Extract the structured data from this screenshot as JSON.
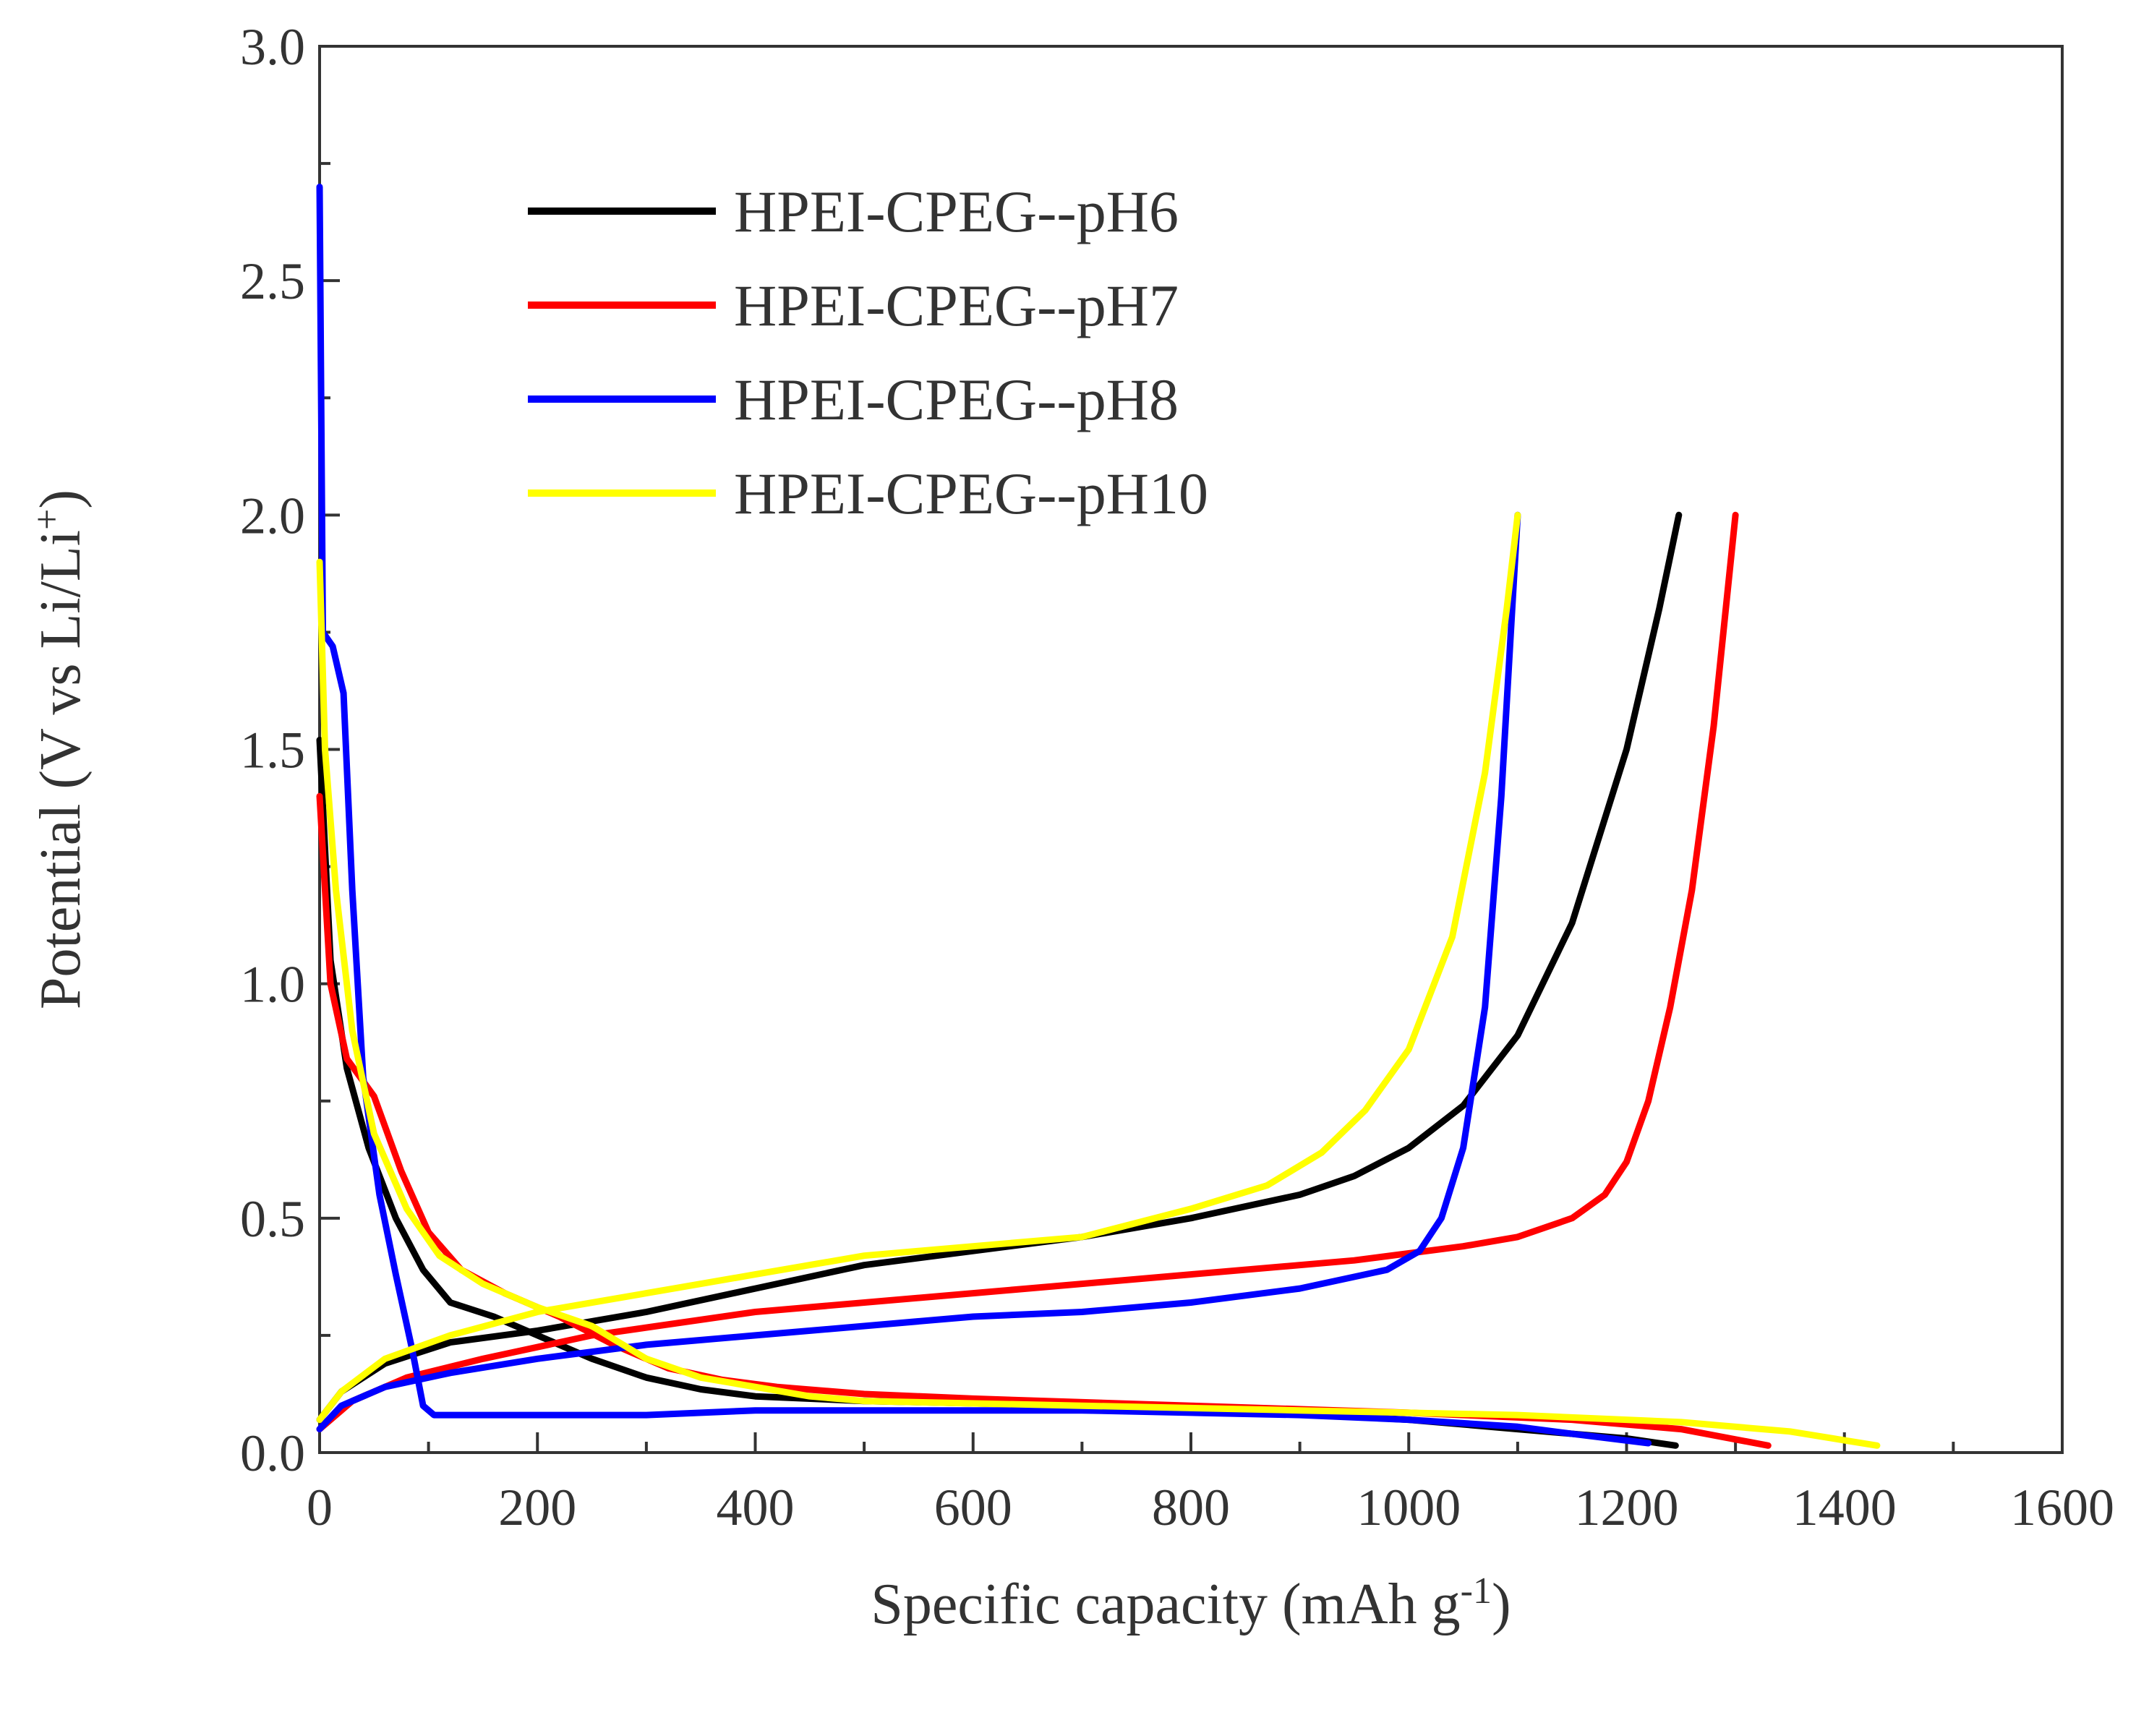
{
  "chart_data": {
    "type": "line",
    "title": "",
    "xlabel": "Specific capacity (mAh g",
    "xlabel_sup": "-1",
    "xlabel_end": ")",
    "ylabel": "Potential (V vs Li/Li",
    "ylabel_sup": "+",
    "ylabel_end": ")",
    "xlim": [
      0,
      1600
    ],
    "ylim": [
      0,
      3.0
    ],
    "xticks": [
      "0",
      "200",
      "400",
      "600",
      "800",
      "1000",
      "1200",
      "1400",
      "1600"
    ],
    "yticks": [
      "0.0",
      "0.5",
      "1.0",
      "1.5",
      "2.0",
      "2.5",
      "3.0"
    ],
    "legend_position": "top-left",
    "series": [
      {
        "name": "HPEI-CPEG--pH6",
        "color": "#000000",
        "discharge": [
          [
            0,
            1.52
          ],
          [
            10,
            1.05
          ],
          [
            25,
            0.82
          ],
          [
            45,
            0.65
          ],
          [
            70,
            0.5
          ],
          [
            95,
            0.39
          ],
          [
            120,
            0.32
          ],
          [
            160,
            0.29
          ],
          [
            200,
            0.25
          ],
          [
            250,
            0.2
          ],
          [
            300,
            0.16
          ],
          [
            350,
            0.135
          ],
          [
            400,
            0.12
          ],
          [
            500,
            0.11
          ],
          [
            600,
            0.105
          ],
          [
            800,
            0.095
          ],
          [
            1000,
            0.07
          ],
          [
            1100,
            0.05
          ],
          [
            1200,
            0.03
          ],
          [
            1245,
            0.015
          ]
        ],
        "charge": [
          [
            0,
            0.07
          ],
          [
            20,
            0.13
          ],
          [
            60,
            0.19
          ],
          [
            120,
            0.235
          ],
          [
            200,
            0.26
          ],
          [
            300,
            0.3
          ],
          [
            400,
            0.35
          ],
          [
            500,
            0.4
          ],
          [
            600,
            0.43
          ],
          [
            700,
            0.46
          ],
          [
            800,
            0.5
          ],
          [
            900,
            0.55
          ],
          [
            950,
            0.59
          ],
          [
            1000,
            0.65
          ],
          [
            1050,
            0.74
          ],
          [
            1100,
            0.89
          ],
          [
            1150,
            1.13
          ],
          [
            1200,
            1.5
          ],
          [
            1230,
            1.8
          ],
          [
            1248,
            2.0
          ]
        ]
      },
      {
        "name": "HPEI-CPEG--pH7",
        "color": "#ff0000",
        "discharge": [
          [
            0,
            1.4
          ],
          [
            10,
            1.0
          ],
          [
            25,
            0.84
          ],
          [
            50,
            0.76
          ],
          [
            75,
            0.6
          ],
          [
            100,
            0.47
          ],
          [
            130,
            0.39
          ],
          [
            170,
            0.34
          ],
          [
            220,
            0.29
          ],
          [
            270,
            0.23
          ],
          [
            320,
            0.18
          ],
          [
            370,
            0.155
          ],
          [
            420,
            0.14
          ],
          [
            500,
            0.125
          ],
          [
            600,
            0.115
          ],
          [
            800,
            0.1
          ],
          [
            1000,
            0.085
          ],
          [
            1150,
            0.07
          ],
          [
            1250,
            0.05
          ],
          [
            1330,
            0.015
          ]
        ],
        "charge": [
          [
            0,
            0.05
          ],
          [
            30,
            0.11
          ],
          [
            80,
            0.16
          ],
          [
            150,
            0.2
          ],
          [
            250,
            0.25
          ],
          [
            400,
            0.3
          ],
          [
            600,
            0.34
          ],
          [
            800,
            0.38
          ],
          [
            950,
            0.41
          ],
          [
            1050,
            0.44
          ],
          [
            1100,
            0.46
          ],
          [
            1150,
            0.5
          ],
          [
            1180,
            0.55
          ],
          [
            1200,
            0.62
          ],
          [
            1220,
            0.75
          ],
          [
            1240,
            0.95
          ],
          [
            1260,
            1.2
          ],
          [
            1280,
            1.55
          ],
          [
            1300,
            2.0
          ]
        ]
      },
      {
        "name": "HPEI-CPEG--pH8",
        "color": "#0000ff",
        "discharge": [
          [
            0,
            2.7
          ],
          [
            3,
            1.75
          ],
          [
            12,
            1.72
          ],
          [
            22,
            1.62
          ],
          [
            30,
            1.2
          ],
          [
            40,
            0.8
          ],
          [
            55,
            0.55
          ],
          [
            70,
            0.38
          ],
          [
            85,
            0.22
          ],
          [
            95,
            0.1
          ],
          [
            105,
            0.08
          ],
          [
            200,
            0.08
          ],
          [
            300,
            0.08
          ],
          [
            400,
            0.09
          ],
          [
            500,
            0.09
          ],
          [
            600,
            0.09
          ],
          [
            700,
            0.09
          ],
          [
            800,
            0.085
          ],
          [
            900,
            0.08
          ],
          [
            1000,
            0.07
          ],
          [
            1100,
            0.055
          ],
          [
            1150,
            0.04
          ],
          [
            1220,
            0.02
          ]
        ],
        "charge": [
          [
            0,
            0.05
          ],
          [
            20,
            0.1
          ],
          [
            60,
            0.14
          ],
          [
            120,
            0.17
          ],
          [
            200,
            0.2
          ],
          [
            300,
            0.23
          ],
          [
            400,
            0.25
          ],
          [
            500,
            0.27
          ],
          [
            600,
            0.29
          ],
          [
            700,
            0.3
          ],
          [
            800,
            0.32
          ],
          [
            900,
            0.35
          ],
          [
            980,
            0.39
          ],
          [
            1010,
            0.43
          ],
          [
            1030,
            0.5
          ],
          [
            1050,
            0.65
          ],
          [
            1070,
            0.95
          ],
          [
            1085,
            1.4
          ],
          [
            1095,
            1.8
          ],
          [
            1100,
            2.0
          ]
        ]
      },
      {
        "name": "HPEI-CPEG--pH10",
        "color": "#ffff00",
        "discharge": [
          [
            0,
            1.9
          ],
          [
            5,
            1.5
          ],
          [
            15,
            1.2
          ],
          [
            30,
            0.9
          ],
          [
            50,
            0.68
          ],
          [
            80,
            0.52
          ],
          [
            110,
            0.42
          ],
          [
            150,
            0.36
          ],
          [
            200,
            0.31
          ],
          [
            250,
            0.27
          ],
          [
            300,
            0.2
          ],
          [
            350,
            0.16
          ],
          [
            400,
            0.14
          ],
          [
            450,
            0.12
          ],
          [
            500,
            0.11
          ],
          [
            700,
            0.1
          ],
          [
            900,
            0.09
          ],
          [
            1100,
            0.08
          ],
          [
            1250,
            0.065
          ],
          [
            1350,
            0.045
          ],
          [
            1430,
            0.015
          ]
        ],
        "charge": [
          [
            0,
            0.07
          ],
          [
            20,
            0.13
          ],
          [
            60,
            0.2
          ],
          [
            120,
            0.25
          ],
          [
            200,
            0.3
          ],
          [
            300,
            0.34
          ],
          [
            400,
            0.38
          ],
          [
            500,
            0.42
          ],
          [
            600,
            0.44
          ],
          [
            700,
            0.46
          ],
          [
            800,
            0.52
          ],
          [
            870,
            0.57
          ],
          [
            920,
            0.64
          ],
          [
            960,
            0.73
          ],
          [
            1000,
            0.86
          ],
          [
            1040,
            1.1
          ],
          [
            1070,
            1.45
          ],
          [
            1090,
            1.8
          ],
          [
            1100,
            2.0
          ]
        ]
      }
    ]
  }
}
